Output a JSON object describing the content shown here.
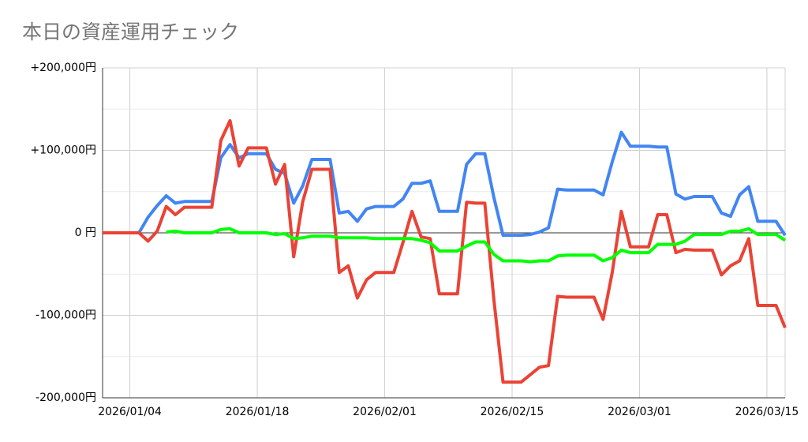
{
  "chart_data": {
    "type": "line",
    "title": "本日の資産運用チェック",
    "x": [
      "2026/01/01",
      "2026/01/02",
      "2026/01/03",
      "2026/01/04",
      "2026/01/05",
      "2026/01/06",
      "2026/01/07",
      "2026/01/08",
      "2026/01/09",
      "2026/01/10",
      "2026/01/11",
      "2026/01/12",
      "2026/01/13",
      "2026/01/14",
      "2026/01/15",
      "2026/01/16",
      "2026/01/17",
      "2026/01/18",
      "2026/01/19",
      "2026/01/20",
      "2026/01/21",
      "2026/01/22",
      "2026/01/23",
      "2026/01/24",
      "2026/01/25",
      "2026/01/26",
      "2026/01/27",
      "2026/01/28",
      "2026/01/29",
      "2026/01/30",
      "2026/01/31",
      "2026/02/01",
      "2026/02/02",
      "2026/02/03",
      "2026/02/04",
      "2026/02/05",
      "2026/02/06",
      "2026/02/07",
      "2026/02/08",
      "2026/02/09",
      "2026/02/10",
      "2026/02/11",
      "2026/02/12",
      "2026/02/13",
      "2026/02/14",
      "2026/02/15",
      "2026/02/16",
      "2026/02/17",
      "2026/02/18",
      "2026/02/19",
      "2026/02/20",
      "2026/02/21",
      "2026/02/22",
      "2026/02/23",
      "2026/02/24",
      "2026/02/25",
      "2026/02/26",
      "2026/02/27",
      "2026/02/28",
      "2026/03/01",
      "2026/03/02",
      "2026/03/03",
      "2026/03/04",
      "2026/03/05",
      "2026/03/06",
      "2026/03/07",
      "2026/03/08",
      "2026/03/09",
      "2026/03/10",
      "2026/03/11",
      "2026/03/12",
      "2026/03/13",
      "2026/03/14",
      "2026/03/15",
      "2026/03/16",
      "2026/03/17"
    ],
    "series": [
      {
        "color": "#4285f4",
        "values": [
          0,
          0,
          0,
          0,
          0,
          19000,
          33000,
          45000,
          36000,
          38000,
          38000,
          38000,
          38000,
          91000,
          107000,
          91000,
          96000,
          96000,
          96000,
          77000,
          72000,
          36000,
          57000,
          89000,
          89000,
          89000,
          24000,
          26000,
          14000,
          29000,
          32000,
          32000,
          32000,
          41000,
          60000,
          60000,
          63000,
          26000,
          26000,
          26000,
          83000,
          96000,
          96000,
          43000,
          -3000,
          -3000,
          -3000,
          -2000,
          1000,
          6000,
          53000,
          52000,
          52000,
          52000,
          52000,
          46000,
          86000,
          122000,
          105000,
          105000,
          105000,
          104000,
          104000,
          47000,
          41000,
          44000,
          44000,
          44000,
          24000,
          20000,
          46000,
          56000,
          14000,
          14000,
          14000,
          -3000
        ]
      },
      {
        "color": "#ea4335",
        "values": [
          0,
          0,
          0,
          0,
          0,
          -10000,
          2000,
          32000,
          22000,
          31000,
          31000,
          31000,
          31000,
          112000,
          136000,
          81000,
          103000,
          103000,
          103000,
          59000,
          83000,
          -29000,
          38000,
          77000,
          77000,
          77000,
          -48000,
          -40000,
          -79000,
          -57000,
          -48000,
          -48000,
          -48000,
          -12000,
          26000,
          -5000,
          -7000,
          -74000,
          -74000,
          -74000,
          37000,
          36000,
          36000,
          -81000,
          -181000,
          -181000,
          -181000,
          -172000,
          -163000,
          -161000,
          -77000,
          -78000,
          -78000,
          -78000,
          -78000,
          -105000,
          -48000,
          26000,
          -17000,
          -17000,
          -17000,
          22000,
          22000,
          -24000,
          -20000,
          -21000,
          -21000,
          -21000,
          -51000,
          -40000,
          -34000,
          -7000,
          -88000,
          -88000,
          -88000,
          -115000
        ]
      },
      {
        "color": "#00ff00",
        "values": [
          null,
          null,
          null,
          null,
          null,
          null,
          null,
          1000,
          2000,
          0,
          0,
          0,
          0,
          4000,
          5000,
          0,
          0,
          0,
          0,
          -2000,
          -1000,
          -7000,
          -6000,
          -4000,
          -4000,
          -4000,
          -6000,
          -6000,
          -6000,
          -6000,
          -7000,
          -7000,
          -7000,
          -7000,
          -7000,
          -9000,
          -12000,
          -22000,
          -22000,
          -22000,
          -16000,
          -11000,
          -11000,
          -26000,
          -34000,
          -34000,
          -34000,
          -35000,
          -34000,
          -34000,
          -28000,
          -27000,
          -27000,
          -27000,
          -27000,
          -34000,
          -30000,
          -21000,
          -24000,
          -24000,
          -24000,
          -14000,
          -14000,
          -14000,
          -10000,
          -2000,
          -2000,
          -2000,
          -2000,
          2000,
          2000,
          5000,
          -2000,
          -2000,
          -2000,
          -9000
        ]
      }
    ],
    "xlim": [
      "2026/01/01",
      "2026/03/17"
    ],
    "xticks": [
      "2026/01/04",
      "2026/01/18",
      "2026/02/01",
      "2026/02/15",
      "2026/03/01",
      "2026/03/15"
    ],
    "ylim": [
      -200000,
      200000
    ],
    "yticks": [
      {
        "value": 200000,
        "label": "+200,000円"
      },
      {
        "value": 100000,
        "label": "+100,000円"
      },
      {
        "value": 0,
        "label": "0 円"
      },
      {
        "value": -100000,
        "label": "-100,000円"
      },
      {
        "value": -200000,
        "label": "-200,000円"
      }
    ],
    "grid": true
  }
}
